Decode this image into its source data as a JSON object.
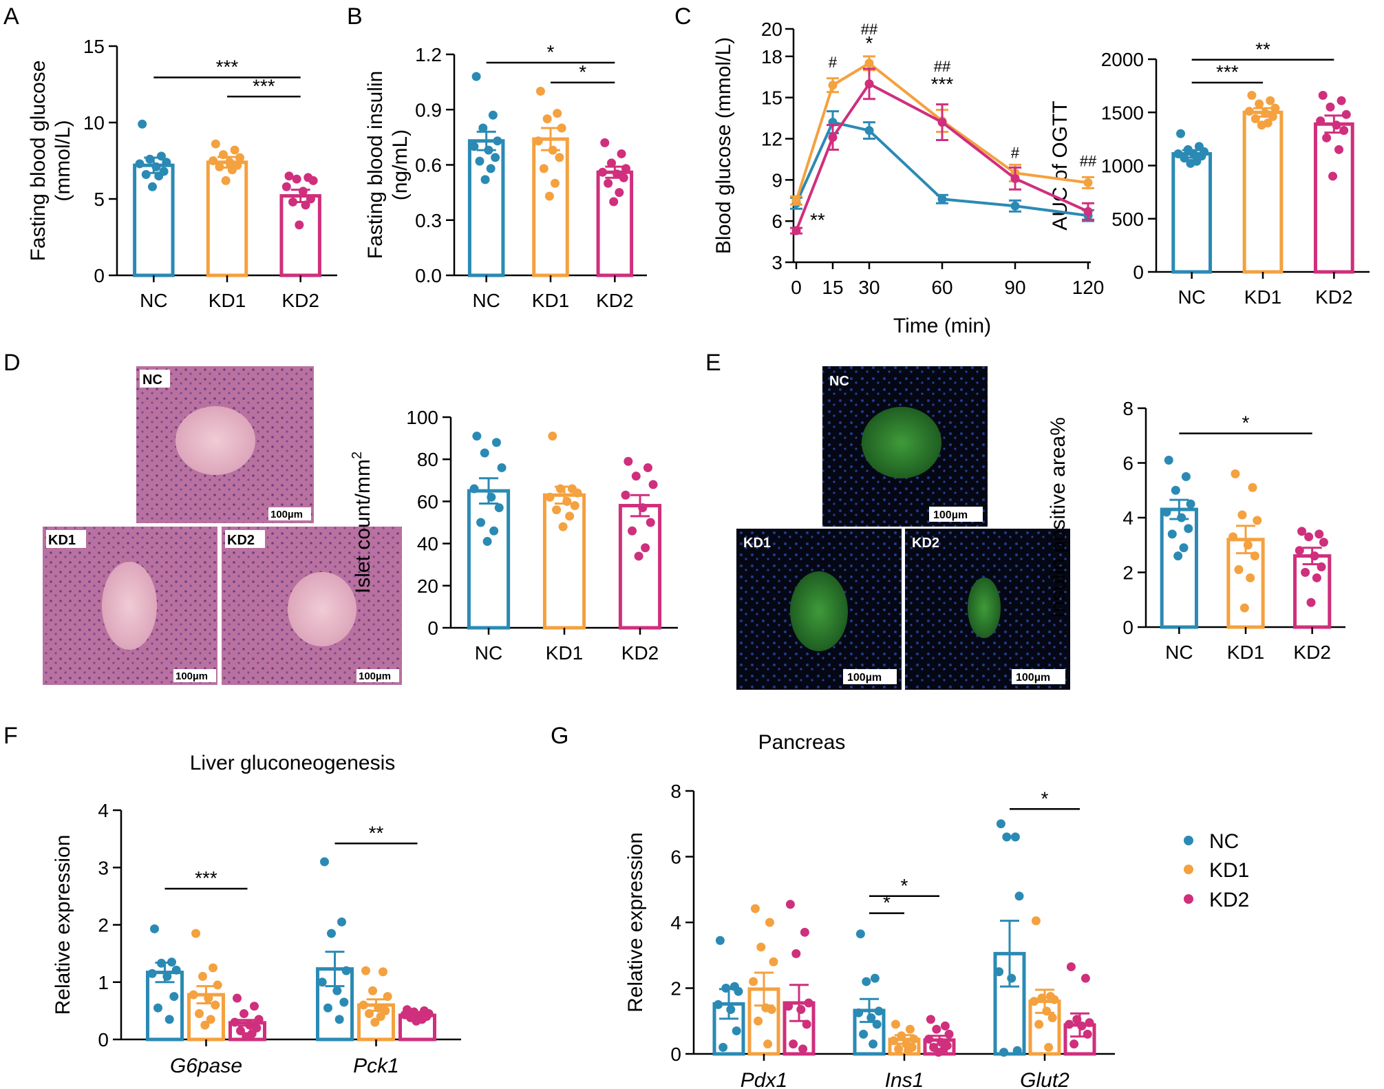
{
  "colors": {
    "NC": "#2a8ab4",
    "KD1": "#f4a13f",
    "KD2": "#cf2f7c"
  },
  "panel_labels": [
    "A",
    "B",
    "C",
    "D",
    "E",
    "F",
    "G"
  ],
  "legend": {
    "items": [
      "NC",
      "KD1",
      "KD2"
    ]
  },
  "micro": {
    "he": {
      "labels": [
        "NC",
        "KD1",
        "KD2"
      ],
      "scale": "100µm"
    },
    "if": {
      "labels": [
        "NC",
        "KD1",
        "KD2"
      ],
      "scale": "100µm"
    }
  },
  "chart_data": [
    {
      "id": "A",
      "type": "bar",
      "categories": [
        "NC",
        "KD1",
        "KD2"
      ],
      "ylabel": [
        "Fasting blood glucose",
        "(mmol/L)"
      ],
      "ylim": [
        0,
        15
      ],
      "yticks": [
        "0",
        "5",
        "10",
        "15"
      ],
      "series": [
        {
          "name": "NC",
          "mean": 7.2,
          "sem": 0.5,
          "points": [
            9.9,
            7.8,
            7.6,
            7.4,
            7.3,
            7.1,
            6.8,
            6.6,
            6.5,
            5.8
          ]
        },
        {
          "name": "KD1",
          "mean": 7.4,
          "sem": 0.35,
          "points": [
            8.6,
            8.2,
            7.9,
            7.7,
            7.5,
            7.4,
            7.2,
            7.1,
            6.9,
            6.2
          ]
        },
        {
          "name": "KD2",
          "mean": 5.2,
          "sem": 0.4,
          "points": [
            6.5,
            6.4,
            6.3,
            6.2,
            5.8,
            5.5,
            5.0,
            4.8,
            4.6,
            3.3
          ]
        }
      ],
      "sig": [
        {
          "from": 0,
          "to": 2,
          "label": "***",
          "y": 12.95
        },
        {
          "from": 1,
          "to": 2,
          "label": "***",
          "y": 11.7
        }
      ]
    },
    {
      "id": "B",
      "type": "bar",
      "categories": [
        "NC",
        "KD1",
        "KD2"
      ],
      "ylabel": [
        "Fasting blood insulin",
        "(ng/mL)"
      ],
      "ylim": [
        0,
        1.2
      ],
      "yticks": [
        "0.0",
        "0.3",
        "0.6",
        "0.9",
        "1.2"
      ],
      "series": [
        {
          "name": "NC",
          "mean": 0.73,
          "sem": 0.05,
          "points": [
            1.08,
            0.87,
            0.8,
            0.73,
            0.7,
            0.68,
            0.64,
            0.62,
            0.58,
            0.52
          ]
        },
        {
          "name": "KD1",
          "mean": 0.74,
          "sem": 0.06,
          "points": [
            1.0,
            0.88,
            0.85,
            0.8,
            0.73,
            0.68,
            0.64,
            0.58,
            0.5,
            0.43
          ]
        },
        {
          "name": "KD2",
          "mean": 0.56,
          "sem": 0.03,
          "points": [
            0.72,
            0.66,
            0.61,
            0.58,
            0.56,
            0.55,
            0.53,
            0.5,
            0.45,
            0.4
          ]
        }
      ],
      "sig": [
        {
          "from": 0,
          "to": 2,
          "label": "*",
          "y": 1.155
        },
        {
          "from": 1,
          "to": 2,
          "label": "*",
          "y": 1.047
        }
      ]
    },
    {
      "id": "C",
      "type": "line",
      "x": [
        0,
        15,
        30,
        60,
        90,
        120
      ],
      "xticks": [
        "0",
        "15",
        "30",
        "60",
        "90",
        "120"
      ],
      "xlabel": "Time (min)",
      "ylabel": "Blood glucose (mmol/L)",
      "ylim": [
        3,
        20
      ],
      "yticks": [
        "3",
        "6",
        "9",
        "12",
        "15",
        "18",
        "20"
      ],
      "series": [
        {
          "name": "NC",
          "values": [
            7.3,
            13.2,
            12.6,
            7.6,
            7.1,
            6.4
          ],
          "sem": [
            0.4,
            0.8,
            0.6,
            0.3,
            0.4,
            0.4
          ]
        },
        {
          "name": "KD1",
          "values": [
            7.5,
            15.9,
            17.5,
            13.3,
            9.5,
            8.8
          ],
          "sem": [
            0.3,
            0.5,
            0.5,
            0.8,
            0.6,
            0.4
          ]
        },
        {
          "name": "KD2",
          "values": [
            5.3,
            12.1,
            16.0,
            13.2,
            9.1,
            6.7
          ],
          "sem": [
            0.2,
            0.9,
            1.1,
            1.3,
            0.8,
            0.6
          ]
        }
      ],
      "annotations": [
        {
          "x": 0,
          "y": 5.6,
          "text": "**",
          "dx": 20
        },
        {
          "x": 15,
          "y": 17.2,
          "text": "#"
        },
        {
          "x": 30,
          "y": 19.6,
          "text": "##"
        },
        {
          "x": 30,
          "y": 18.5,
          "text": "*"
        },
        {
          "x": 60,
          "y": 16.9,
          "text": "##"
        },
        {
          "x": 60,
          "y": 15.5,
          "text": "***"
        },
        {
          "x": 90,
          "y": 10.6,
          "text": "#"
        },
        {
          "x": 120,
          "y": 10.0,
          "text": "##"
        }
      ]
    },
    {
      "id": "C2",
      "type": "bar",
      "categories": [
        "NC",
        "KD1",
        "KD2"
      ],
      "ylabel": "AUC of OGTT",
      "ylim": [
        0,
        2000
      ],
      "yticks": [
        "0",
        "500",
        "1000",
        "1500",
        "2000"
      ],
      "series": [
        {
          "name": "NC",
          "mean": 1110,
          "sem": 35,
          "points": [
            1300,
            1180,
            1150,
            1130,
            1110,
            1100,
            1090,
            1070,
            1040,
            1020
          ]
        },
        {
          "name": "KD1",
          "mean": 1500,
          "sem": 40,
          "points": [
            1660,
            1610,
            1580,
            1540,
            1510,
            1490,
            1460,
            1440,
            1400,
            1380
          ]
        },
        {
          "name": "KD2",
          "mean": 1390,
          "sem": 80,
          "points": [
            1660,
            1610,
            1550,
            1480,
            1420,
            1380,
            1330,
            1260,
            1150,
            900
          ]
        }
      ],
      "sig": [
        {
          "from": 0,
          "to": 2,
          "label": "**",
          "y": 1995
        },
        {
          "from": 0,
          "to": 1,
          "label": "***",
          "y": 1780
        }
      ]
    },
    {
      "id": "D",
      "type": "bar",
      "categories": [
        "NC",
        "KD1",
        "KD2"
      ],
      "ylabel": "Islet count/mm",
      "ylabel_sup": "2",
      "ylim": [
        0,
        100
      ],
      "yticks": [
        "0",
        "20",
        "40",
        "60",
        "80",
        "100"
      ],
      "series": [
        {
          "name": "NC",
          "mean": 65,
          "sem": 6,
          "points": [
            91,
            88,
            83,
            76,
            66,
            62,
            57,
            50,
            46,
            41
          ]
        },
        {
          "name": "KD1",
          "mean": 63,
          "sem": 4,
          "points": [
            91,
            66,
            66,
            64,
            62,
            60,
            58,
            56,
            53,
            48
          ]
        },
        {
          "name": "KD2",
          "mean": 58,
          "sem": 5,
          "points": [
            79,
            76,
            72,
            68,
            63,
            57,
            50,
            46,
            38,
            34
          ]
        }
      ],
      "sig": []
    },
    {
      "id": "E",
      "type": "bar",
      "categories": [
        "NC",
        "KD1",
        "KD2"
      ],
      "ylabel": "Insulin positive area%",
      "ylim": [
        0,
        8
      ],
      "yticks": [
        "0",
        "2",
        "4",
        "6",
        "8"
      ],
      "series": [
        {
          "name": "NC",
          "mean": 4.3,
          "sem": 0.35,
          "points": [
            6.1,
            5.5,
            5.0,
            4.5,
            4.2,
            4.0,
            3.6,
            3.4,
            2.9,
            2.6
          ]
        },
        {
          "name": "KD1",
          "mean": 3.2,
          "sem": 0.5,
          "points": [
            5.6,
            5.1,
            4.1,
            3.9,
            3.3,
            3.0,
            2.6,
            2.1,
            1.8,
            0.7
          ]
        },
        {
          "name": "KD2",
          "mean": 2.6,
          "sem": 0.3,
          "points": [
            3.5,
            3.4,
            3.3,
            3.1,
            2.8,
            2.6,
            2.2,
            2.0,
            1.8,
            0.9
          ]
        }
      ],
      "sig": [
        {
          "from": 0,
          "to": 2,
          "label": "*",
          "y": 7.08
        }
      ]
    },
    {
      "id": "F",
      "type": "grouped_bar",
      "title": "Liver gluconeogenesis",
      "groups": [
        "G6pase",
        "Pck1"
      ],
      "ylabel": "Relative expression",
      "ylim": [
        0,
        4
      ],
      "yticks": [
        "0",
        "1",
        "2",
        "3",
        "4"
      ],
      "series": [
        {
          "name": "NC",
          "means": [
            1.17,
            1.23
          ],
          "sems": [
            0.17,
            0.3
          ],
          "points": [
            [
              1.93,
              1.35,
              1.33,
              1.21,
              1.15,
              1.1,
              0.75,
              0.55,
              0.35
            ],
            [
              3.1,
              2.05,
              1.85,
              1.2,
              1.0,
              0.85,
              0.65,
              0.55,
              0.35
            ]
          ]
        },
        {
          "name": "KD1",
          "means": [
            0.78,
            0.6
          ],
          "sems": [
            0.15,
            0.1
          ],
          "points": [
            [
              1.85,
              1.25,
              1.1,
              0.95,
              0.78,
              0.72,
              0.6,
              0.45,
              0.35,
              0.25
            ],
            [
              1.2,
              1.18,
              0.85,
              0.75,
              0.6,
              0.55,
              0.5,
              0.45,
              0.4,
              0.3
            ]
          ]
        },
        {
          "name": "KD2",
          "means": [
            0.29,
            0.42
          ],
          "sems": [
            0.05,
            0.03
          ],
          "points": [
            [
              0.72,
              0.58,
              0.45,
              0.35,
              0.3,
              0.25,
              0.2,
              0.15,
              0.1,
              0.05
            ],
            [
              0.52,
              0.5,
              0.48,
              0.45,
              0.43,
              0.42,
              0.4,
              0.38,
              0.35,
              0.32
            ]
          ]
        }
      ],
      "sig": [
        {
          "group": 0,
          "from": 0,
          "to": 2,
          "label": "***",
          "y": 2.63
        },
        {
          "group": 1,
          "from": 0,
          "to": 2,
          "label": "**",
          "y": 3.42
        }
      ]
    },
    {
      "id": "G",
      "type": "grouped_bar",
      "title": "Pancreas",
      "groups": [
        "Pdx1",
        "Ins1",
        "Glut2"
      ],
      "ylabel": "Relative expression",
      "ylim": [
        0,
        8
      ],
      "yticks": [
        "0",
        "2",
        "4",
        "6",
        "8"
      ],
      "series": [
        {
          "name": "NC",
          "means": [
            1.52,
            1.32,
            3.05
          ],
          "sems": [
            0.45,
            0.35,
            1.0
          ],
          "points": [
            [
              3.45,
              2.05,
              2.0,
              1.9,
              1.5,
              1.35,
              0.7,
              0.2
            ],
            [
              3.65,
              2.3,
              2.2,
              1.3,
              1.25,
              1.1,
              0.9,
              0.6,
              0.3
            ],
            [
              7.0,
              6.6,
              6.6,
              4.8,
              2.5,
              2.3,
              0.1,
              0.05
            ]
          ]
        },
        {
          "name": "KD1",
          "means": [
            1.97,
            0.44,
            1.6
          ],
          "sems": [
            0.5,
            0.13,
            0.35
          ],
          "points": [
            [
              4.42,
              4.0,
              3.25,
              2.8,
              2.2,
              1.4,
              1.35,
              1.0,
              0.3
            ],
            [
              0.9,
              0.75,
              0.55,
              0.45,
              0.4,
              0.3,
              0.2,
              0.15,
              0.1
            ],
            [
              4.05,
              1.75,
              1.7,
              1.65,
              1.6,
              1.3,
              1.1,
              0.9,
              0.2
            ]
          ]
        },
        {
          "name": "KD2",
          "means": [
            1.55,
            0.42,
            0.88
          ],
          "sems": [
            0.55,
            0.13,
            0.35
          ],
          "points": [
            [
              4.55,
              3.7,
              3.05,
              1.55,
              1.45,
              1.35,
              0.9,
              0.3,
              0.15
            ],
            [
              1.05,
              0.85,
              0.75,
              0.6,
              0.45,
              0.35,
              0.25,
              0.2,
              0.1,
              0.05
            ],
            [
              2.65,
              2.3,
              1.05,
              0.95,
              0.9,
              0.85,
              0.6,
              0.3
            ]
          ]
        }
      ],
      "sig": [
        {
          "group": 1,
          "from": 0,
          "to": 2,
          "label": "*",
          "y": 4.8
        },
        {
          "group": 1,
          "from": 0,
          "to": 1,
          "label": "*",
          "y": 4.28
        },
        {
          "group": 2,
          "from": 0,
          "to": 2,
          "label": "*",
          "y": 7.45
        }
      ]
    }
  ]
}
